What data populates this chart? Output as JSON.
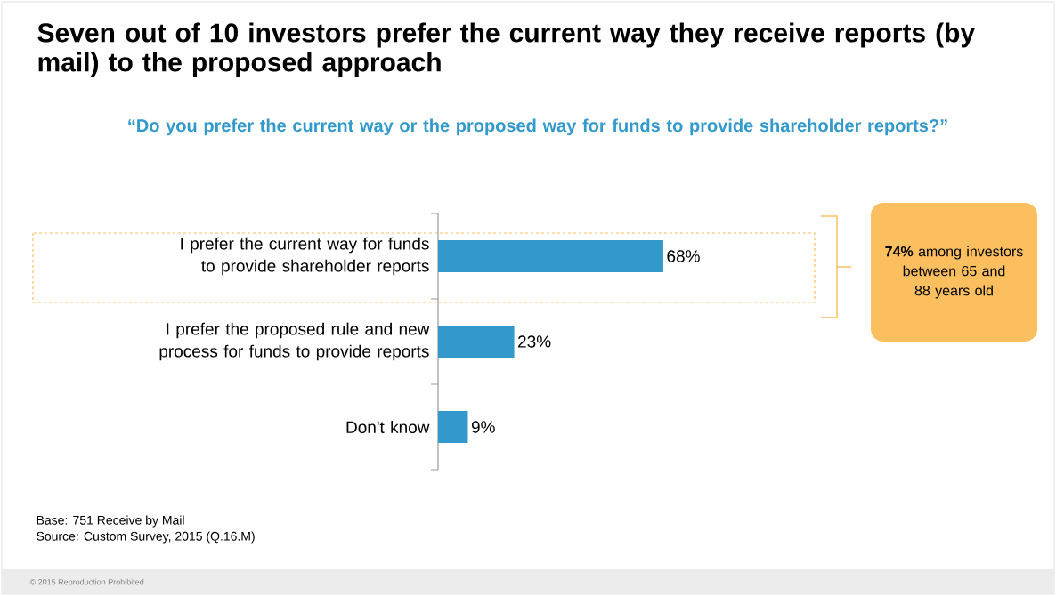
{
  "chart_data": {
    "type": "bar",
    "orientation": "horizontal",
    "title": "Seven out of 10 investors prefer the current way they receive reports (by mail) to the proposed approach",
    "subtitle": "“Do you prefer the current way or the proposed way for funds to provide shareholder reports?”",
    "categories": [
      "I prefer the current way for funds to provide shareholder reports",
      "I prefer the proposed rule and new process for funds to provide reports",
      "Don't know"
    ],
    "values": [
      68,
      23,
      9
    ],
    "value_labels": [
      "68%",
      "23%",
      "9%"
    ],
    "color": "#3399cc",
    "annotations": [
      "**74%** among investors between 65 and 88 years old",
      "Base: 751 Receive by Mail",
      "Source: Custom Survey, 2015 (Q.16.M)",
      "© 2015 Reproduction Prohibited"
    ]
  }
}
